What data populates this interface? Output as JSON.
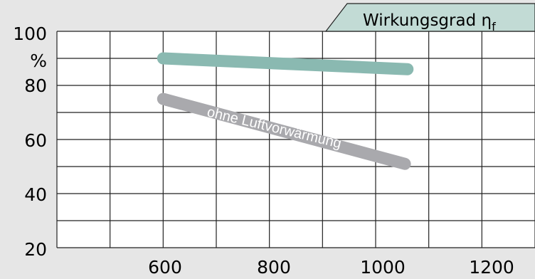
{
  "chart_data": {
    "type": "line",
    "title": "Wirkungsgrad η",
    "title_subscript": "f",
    "xlabel": "",
    "ylabel": "%",
    "xlim": [
      400,
      1300
    ],
    "ylim": [
      20,
      100
    ],
    "x_ticks": [
      "600",
      "800",
      "1000",
      "1200"
    ],
    "y_ticks": [
      "100",
      "80",
      "60",
      "40",
      "20"
    ],
    "y_unit": "%",
    "grid": true,
    "series": [
      {
        "name": "",
        "color": "#8ab9b1",
        "x": [
          600,
          1060
        ],
        "y": [
          90,
          86
        ]
      },
      {
        "name": "ohne Luftvorwärmung",
        "color": "#a9a9ad",
        "x": [
          600,
          1055
        ],
        "y": [
          75,
          51
        ]
      }
    ]
  }
}
